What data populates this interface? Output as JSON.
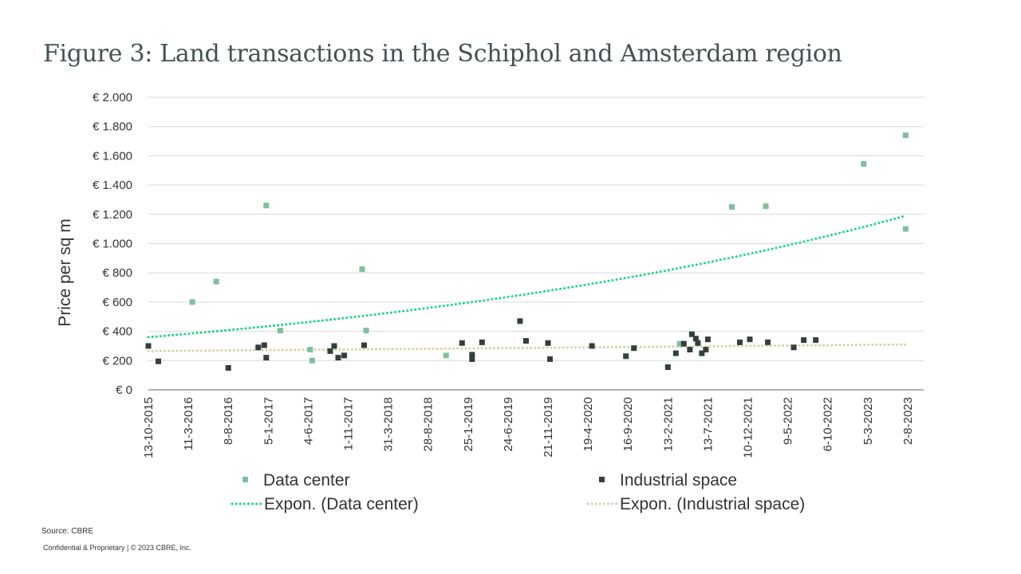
{
  "title": "Figure 3: Land transactions in the Schiphol and Amsterdam region",
  "source": "Source: CBRE",
  "footer": "Confidential & Proprietary | © 2023 CBRE, Inc.",
  "chart_data": {
    "type": "scatter",
    "ylabel": "Price per sq m",
    "ylim": [
      0,
      2000
    ],
    "y_ticks": [
      0,
      200,
      400,
      600,
      800,
      1000,
      1200,
      1400,
      1600,
      1800,
      2000
    ],
    "y_tick_labels": [
      "€ 0",
      "€ 200",
      "€ 400",
      "€ 600",
      "€ 800",
      "€ 1.000",
      "€ 1.200",
      "€ 1.400",
      "€ 1.600",
      "€ 1.800",
      "€ 2.000"
    ],
    "x_tick_labels": [
      "13-10-2015",
      "11-3-2016",
      "8-8-2016",
      "5-1-2017",
      "4-6-2017",
      "1-11-2017",
      "31-3-2018",
      "28-8-2018",
      "25-1-2019",
      "24-6-2019",
      "21-11-2019",
      "19-4-2020",
      "16-9-2020",
      "13-2-2021",
      "13-7-2021",
      "10-12-2021",
      "9-5-2022",
      "6-10-2022",
      "5-3-2023",
      "2-8-2023"
    ],
    "xlim": [
      0,
      20
    ],
    "x_unit": "tick index (one tick ≈ 150 days, starting 13-10-2015)",
    "grid": true,
    "colors": {
      "data_center": "#7fbf9f",
      "industrial": "#333f3c",
      "data_center_trend": "#1ed67f",
      "industrial_trend": "#d8d3a6",
      "grid": "#d9d9d9",
      "axis": "#666666"
    },
    "series": [
      {
        "name": "Data center",
        "kind": "points",
        "points": [
          {
            "x": 1.1,
            "y": 600
          },
          {
            "x": 1.7,
            "y": 740
          },
          {
            "x": 2.95,
            "y": 1260
          },
          {
            "x": 3.3,
            "y": 405
          },
          {
            "x": 4.05,
            "y": 275
          },
          {
            "x": 4.1,
            "y": 200
          },
          {
            "x": 5.35,
            "y": 825
          },
          {
            "x": 5.45,
            "y": 405
          },
          {
            "x": 7.45,
            "y": 235
          },
          {
            "x": 13.3,
            "y": 315
          },
          {
            "x": 14.6,
            "y": 1250
          },
          {
            "x": 15.45,
            "y": 1255
          },
          {
            "x": 17.9,
            "y": 1545
          },
          {
            "x": 18.95,
            "y": 1740
          },
          {
            "x": 18.95,
            "y": 1100
          }
        ]
      },
      {
        "name": "Industrial space",
        "kind": "points",
        "points": [
          {
            "x": 0.0,
            "y": 300
          },
          {
            "x": 0.25,
            "y": 195
          },
          {
            "x": 2.0,
            "y": 150
          },
          {
            "x": 2.75,
            "y": 290
          },
          {
            "x": 2.9,
            "y": 305
          },
          {
            "x": 2.95,
            "y": 220
          },
          {
            "x": 4.55,
            "y": 265
          },
          {
            "x": 4.65,
            "y": 300
          },
          {
            "x": 4.75,
            "y": 220
          },
          {
            "x": 4.9,
            "y": 235
          },
          {
            "x": 5.4,
            "y": 305
          },
          {
            "x": 7.85,
            "y": 320
          },
          {
            "x": 8.1,
            "y": 240
          },
          {
            "x": 8.1,
            "y": 210
          },
          {
            "x": 8.35,
            "y": 325
          },
          {
            "x": 9.3,
            "y": 470
          },
          {
            "x": 9.45,
            "y": 335
          },
          {
            "x": 10.0,
            "y": 320
          },
          {
            "x": 10.05,
            "y": 210
          },
          {
            "x": 11.1,
            "y": 300
          },
          {
            "x": 11.95,
            "y": 230
          },
          {
            "x": 12.15,
            "y": 285
          },
          {
            "x": 13.0,
            "y": 155
          },
          {
            "x": 13.2,
            "y": 250
          },
          {
            "x": 13.4,
            "y": 315
          },
          {
            "x": 13.55,
            "y": 275
          },
          {
            "x": 13.6,
            "y": 380
          },
          {
            "x": 13.7,
            "y": 350
          },
          {
            "x": 13.75,
            "y": 320
          },
          {
            "x": 13.85,
            "y": 250
          },
          {
            "x": 13.95,
            "y": 275
          },
          {
            "x": 14.0,
            "y": 345
          },
          {
            "x": 14.8,
            "y": 325
          },
          {
            "x": 15.05,
            "y": 345
          },
          {
            "x": 15.5,
            "y": 325
          },
          {
            "x": 16.15,
            "y": 290
          },
          {
            "x": 16.4,
            "y": 340
          },
          {
            "x": 16.7,
            "y": 340
          }
        ]
      },
      {
        "name": "Expon. (Data center)",
        "kind": "trend",
        "x_range": [
          0,
          18.95
        ],
        "y_start": 360,
        "y_end": 1190
      },
      {
        "name": "Expon. (Industrial space)",
        "kind": "trend",
        "x_range": [
          0,
          18.95
        ],
        "y_start": 265,
        "y_end": 310
      }
    ],
    "legend": [
      {
        "label": "Data center",
        "symbol": "square",
        "series": 0
      },
      {
        "label": "Industrial space",
        "symbol": "square",
        "series": 1
      },
      {
        "label": "Expon. (Data center)",
        "symbol": "dotted-line",
        "series": 2
      },
      {
        "label": "Expon. (Industrial space)",
        "symbol": "dotted-line",
        "series": 3
      }
    ]
  }
}
